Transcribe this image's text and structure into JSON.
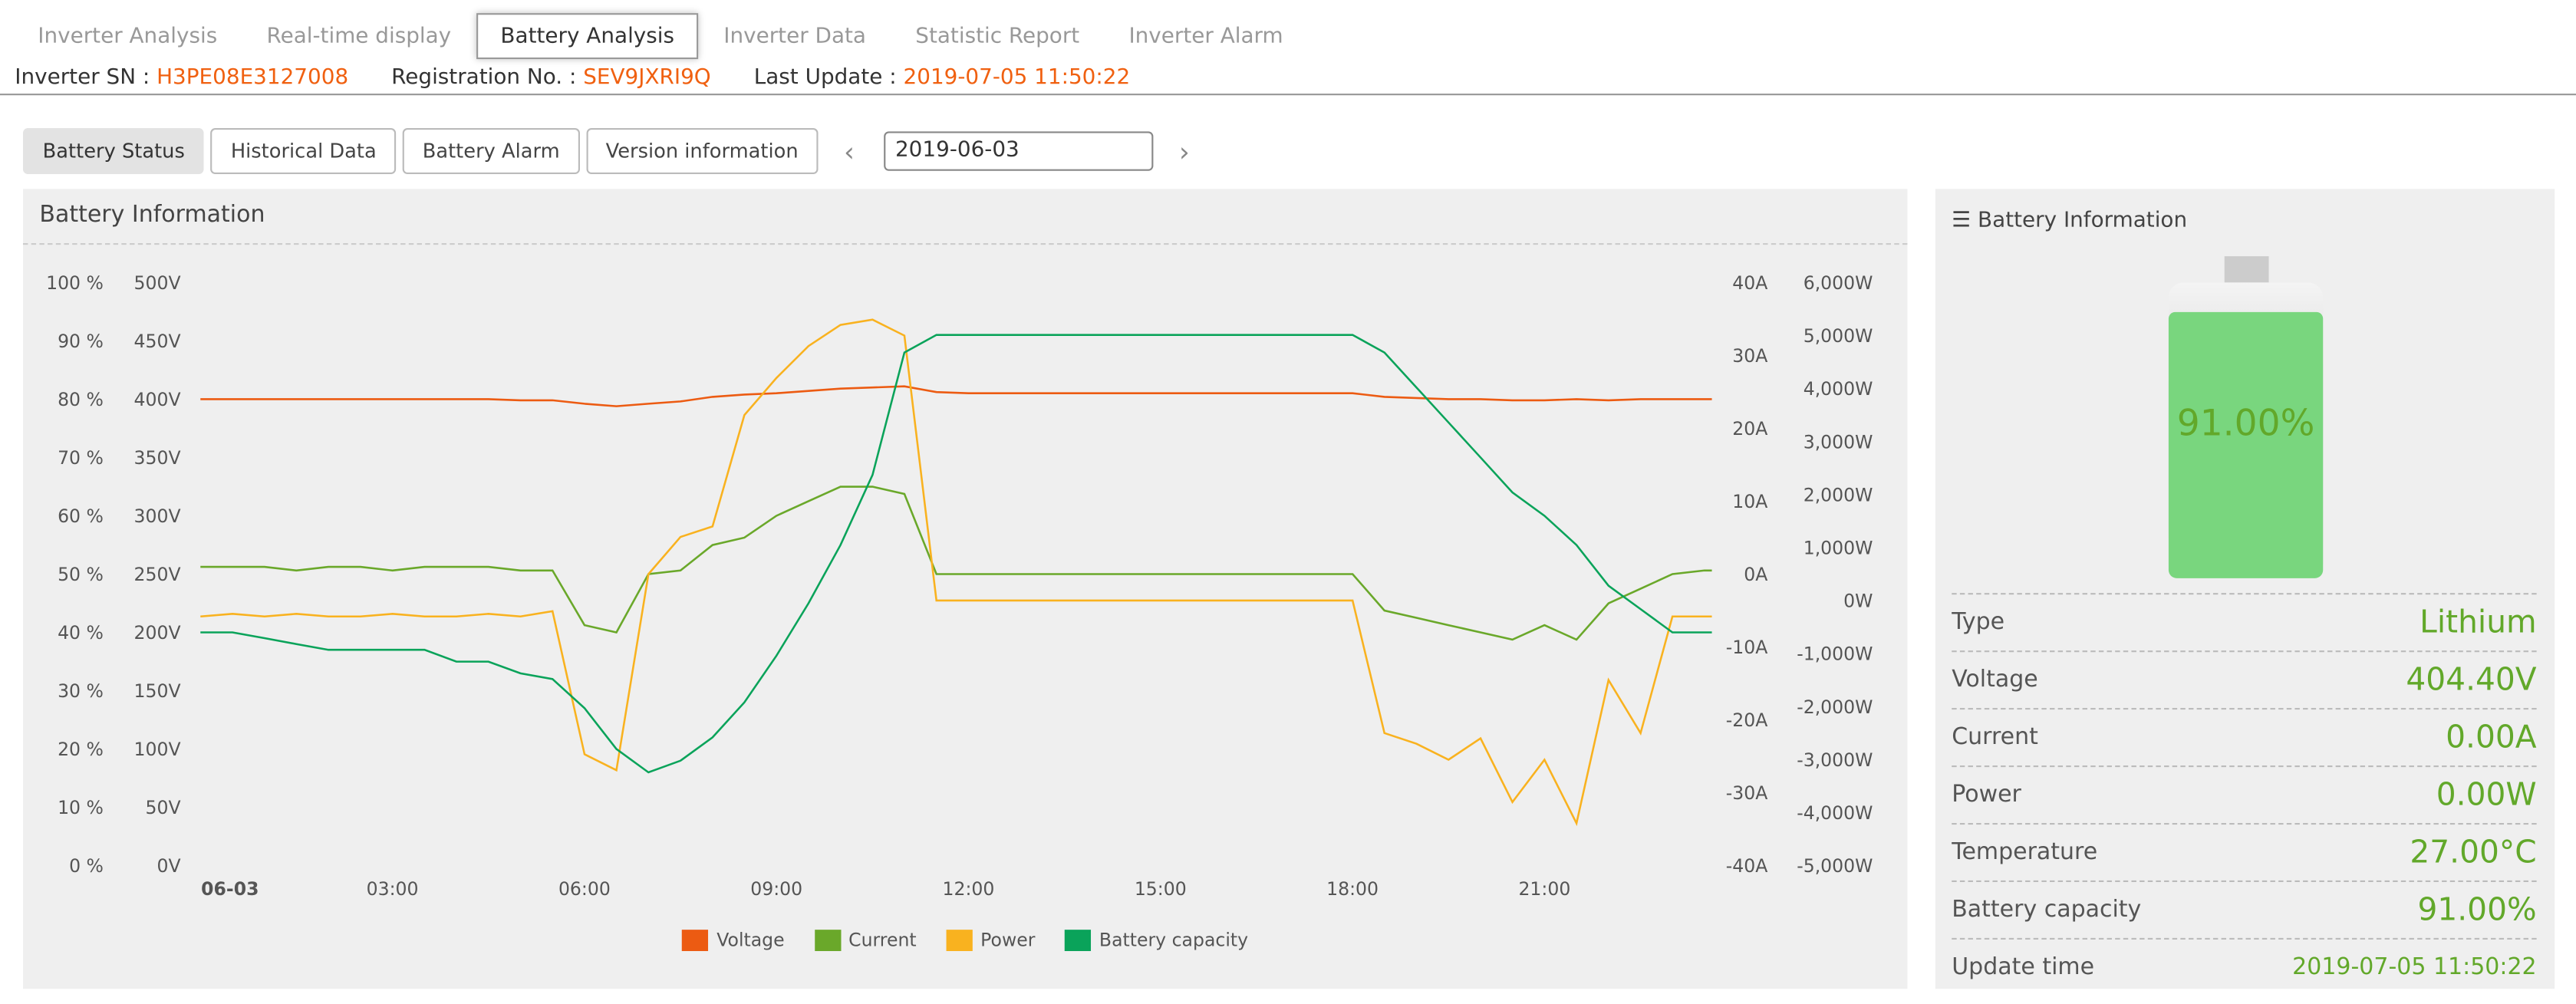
{
  "tabs": [
    "Inverter Analysis",
    "Real-time display",
    "Battery Analysis",
    "Inverter Data",
    "Statistic Report",
    "Inverter Alarm"
  ],
  "active_tab": 2,
  "info": {
    "sn_label": "Inverter SN :",
    "sn": "H3PE08E3127008",
    "reg_label": "Registration No. :",
    "reg": "SEV9JXRI9Q",
    "update_label": "Last Update :",
    "update": "2019-07-05 11:50:22"
  },
  "subtabs": [
    "Battery Status",
    "Historical Data",
    "Battery Alarm",
    "Version information"
  ],
  "date": {
    "value": "2019-06-03",
    "prev_icon": "chevron-left-icon",
    "next_icon": "chevron-right-icon"
  },
  "left_panel": {
    "title": "Battery Information"
  },
  "right_panel": {
    "title": "Battery Information",
    "title_icon": "list-icon",
    "battery_level": 91,
    "battery_text": "91.00%",
    "rows": [
      {
        "label": "Type",
        "value": "Lithium"
      },
      {
        "label": "Voltage",
        "value": "404.40V"
      },
      {
        "label": "Current",
        "value": "0.00A"
      },
      {
        "label": "Power",
        "value": "0.00W"
      },
      {
        "label": "Temperature",
        "value": "27.00°C"
      },
      {
        "label": "Battery capacity",
        "value": "91.00%"
      },
      {
        "label": "Update time",
        "value": "2019-07-05 11:50:22"
      }
    ]
  },
  "chart_data": {
    "type": "line",
    "x_ticks": [
      "06-03",
      "03:00",
      "06:00",
      "09:00",
      "12:00",
      "15:00",
      "18:00",
      "21:00"
    ],
    "axes": {
      "percent": {
        "ticks": [
          "0 %",
          "10 %",
          "20 %",
          "30 %",
          "40 %",
          "50 %",
          "60 %",
          "70 %",
          "80 %",
          "90 %",
          "100 %"
        ],
        "range": [
          0,
          100
        ]
      },
      "voltage": {
        "ticks": [
          "0V",
          "50V",
          "100V",
          "150V",
          "200V",
          "250V",
          "300V",
          "350V",
          "400V",
          "450V",
          "500V"
        ],
        "range": [
          0,
          500
        ]
      },
      "current": {
        "ticks": [
          "-40A",
          "-30A",
          "-20A",
          "-10A",
          "0A",
          "10A",
          "20A",
          "30A",
          "40A"
        ],
        "range": [
          -40,
          40
        ]
      },
      "power": {
        "ticks": [
          "-5,000W",
          "-4,000W",
          "-3,000W",
          "-2,000W",
          "-1,000W",
          "0W",
          "1,000W",
          "2,000W",
          "3,000W",
          "4,000W",
          "5,000W",
          "6,000W"
        ],
        "range": [
          -5000,
          6000
        ]
      }
    },
    "x": [
      "00:00",
      "00:30",
      "01:00",
      "01:30",
      "02:00",
      "02:30",
      "03:00",
      "03:30",
      "04:00",
      "04:30",
      "05:00",
      "05:30",
      "06:00",
      "06:30",
      "07:00",
      "07:30",
      "08:00",
      "08:30",
      "09:00",
      "09:30",
      "10:00",
      "10:30",
      "11:00",
      "11:30",
      "12:00",
      "12:30",
      "13:00",
      "13:30",
      "14:00",
      "14:30",
      "15:00",
      "15:30",
      "16:00",
      "16:30",
      "17:00",
      "17:30",
      "18:00",
      "18:30",
      "19:00",
      "19:30",
      "20:00",
      "20:30",
      "21:00",
      "21:30",
      "22:00",
      "22:30",
      "23:00",
      "23:30"
    ],
    "series": [
      {
        "name": "Voltage",
        "axis": "voltage",
        "color": "#ec5b12",
        "values": [
          400,
          400,
          400,
          400,
          400,
          400,
          400,
          400,
          400,
          400,
          399,
          399,
          396,
          394,
          396,
          398,
          402,
          404,
          405,
          407,
          409,
          410,
          411,
          406,
          405,
          405,
          405,
          405,
          405,
          405,
          405,
          405,
          405,
          405,
          405,
          405,
          405,
          402,
          401,
          400,
          400,
          399,
          399,
          400,
          399,
          400,
          400,
          400
        ]
      },
      {
        "name": "Current",
        "axis": "current",
        "color": "#6aa82a",
        "values": [
          1,
          1,
          1,
          0.5,
          1,
          1,
          0.5,
          1,
          1,
          1,
          0.5,
          0.5,
          -7,
          -8,
          0,
          0.5,
          4,
          5,
          8,
          10,
          12,
          12,
          11,
          0,
          0,
          0,
          0,
          0,
          0,
          0,
          0,
          0,
          0,
          0,
          0,
          0,
          0,
          -5,
          -6,
          -7,
          -8,
          -9,
          -7,
          -9,
          -4,
          -2,
          0,
          0.5
        ]
      },
      {
        "name": "Power",
        "axis": "power",
        "color": "#f9b21f",
        "values": [
          -300,
          -250,
          -300,
          -250,
          -300,
          -300,
          -250,
          -300,
          -300,
          -250,
          -300,
          -200,
          -2900,
          -3200,
          500,
          1200,
          1400,
          3500,
          4200,
          4800,
          5200,
          5300,
          5000,
          0,
          0,
          0,
          0,
          0,
          0,
          0,
          0,
          0,
          0,
          0,
          0,
          0,
          0,
          -2500,
          -2700,
          -3000,
          -2600,
          -3800,
          -3000,
          -4200,
          -1500,
          -2500,
          -300,
          -300
        ]
      },
      {
        "name": "Battery capacity",
        "axis": "percent",
        "color": "#0aa35a",
        "values": [
          40,
          40,
          39,
          38,
          37,
          37,
          37,
          37,
          35,
          35,
          33,
          32,
          27,
          20,
          16,
          18,
          22,
          28,
          36,
          45,
          55,
          67,
          88,
          91,
          91,
          91,
          91,
          91,
          91,
          91,
          91,
          91,
          91,
          91,
          91,
          91,
          91,
          88,
          82,
          76,
          70,
          64,
          60,
          55,
          48,
          44,
          40,
          40
        ]
      }
    ],
    "legend": "bottom",
    "grid": false
  }
}
